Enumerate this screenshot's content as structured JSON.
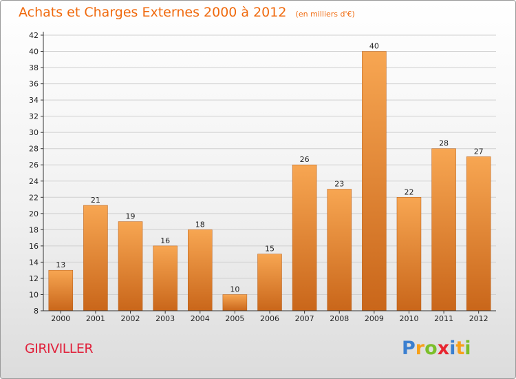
{
  "header": {
    "title": "Achats et Charges Externes 2000 à 2012",
    "subtitle": "(en milliers d'€)"
  },
  "commune": "GIRIVILLER",
  "logo": {
    "letters": [
      {
        "char": "P",
        "color": "#3a7fd0"
      },
      {
        "char": "r",
        "color": "#f7a019"
      },
      {
        "char": "o",
        "color": "#7bbf2a"
      },
      {
        "char": "x",
        "color": "#e8252f"
      },
      {
        "char": "i",
        "color": "#3a7fd0"
      },
      {
        "char": "t",
        "color": "#f7a019"
      },
      {
        "char": "i",
        "color": "#7bbf2a"
      }
    ]
  },
  "colors": {
    "bar_light": "#f7a652",
    "bar_dark": "#c9661a",
    "title": "#f06a0e",
    "commune": "#e0233d"
  },
  "chart_data": {
    "type": "bar",
    "title": "Achats et Charges Externes 2000 à 2012",
    "subtitle": "(en milliers d'€)",
    "categories": [
      "2000",
      "2001",
      "2002",
      "2003",
      "2004",
      "2005",
      "2006",
      "2007",
      "2008",
      "2009",
      "2010",
      "2011",
      "2012"
    ],
    "values": [
      13,
      21,
      19,
      16,
      18,
      10,
      15,
      26,
      23,
      40,
      22,
      28,
      27
    ],
    "ylim": [
      8,
      42
    ],
    "yticks": [
      8,
      10,
      12,
      14,
      16,
      18,
      20,
      22,
      24,
      26,
      28,
      30,
      32,
      34,
      36,
      38,
      40,
      42
    ],
    "grid": true,
    "xlabel": "",
    "ylabel": ""
  }
}
